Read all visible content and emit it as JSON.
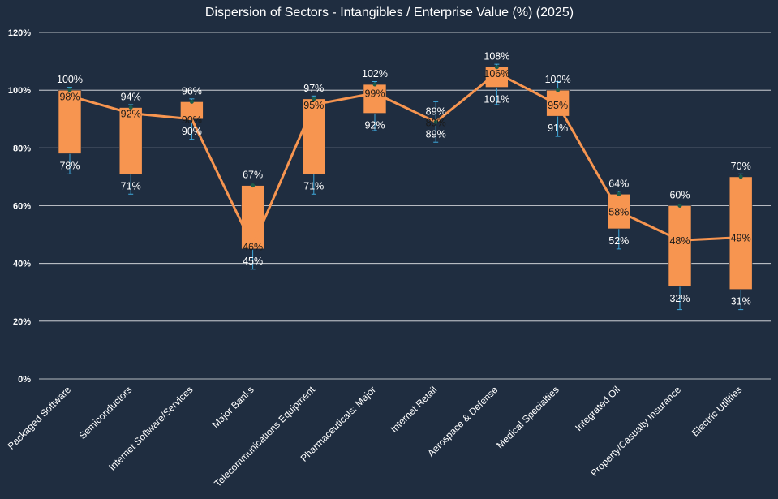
{
  "chart_data": {
    "type": "box",
    "title": "Dispersion of Sectors - Intangibles / Enterprise Value (%) (2025)",
    "xlabel": "",
    "ylabel": "",
    "ylim": [
      0,
      120
    ],
    "yticks": [
      0,
      20,
      40,
      60,
      80,
      100,
      120
    ],
    "ytick_labels": [
      "0%",
      "20%",
      "40%",
      "60%",
      "80%",
      "100%",
      "120%"
    ],
    "grid": true,
    "colors": {
      "background": "#1f2d40",
      "box_fill": "#f79550",
      "median_line": "#f79550",
      "whisker": "#3fa9dc",
      "grid": "#ffffff",
      "marker": "#1d5c4a"
    },
    "categories": [
      "Packaged Software",
      "Semiconductors",
      "Internet Software/Services",
      "Major Banks",
      "Telecommunications Equipment",
      "Pharmaceuticals: Major",
      "Internet Retail",
      "Aerospace & Defense",
      "Medical Specialties",
      "Integrated Oil",
      "Property/Casualty Insurance",
      "Electric Utilities"
    ],
    "box_top": [
      100,
      94,
      96,
      67,
      97,
      102,
      89,
      108,
      100,
      64,
      60,
      70
    ],
    "box_bottom": [
      78,
      71,
      90,
      45,
      71,
      92,
      89,
      101,
      91,
      52,
      32,
      31
    ],
    "median": [
      98,
      92,
      90,
      46,
      95,
      99,
      89,
      106,
      95,
      58,
      48,
      49
    ],
    "top_labels": [
      "100%",
      "94%",
      "96%",
      "67%",
      "97%",
      "102%",
      "89%",
      "108%",
      "100%",
      "64%",
      "60%",
      "70%"
    ],
    "bottom_labels": [
      "78%",
      "71%",
      "90%",
      "45%",
      "71%",
      "92%",
      "89%",
      "101%",
      "91%",
      "52%",
      "32%",
      "31%"
    ],
    "median_labels": [
      "98%",
      "92%",
      "90%",
      "46%",
      "95%",
      "99%",
      "89%",
      "106%",
      "95%",
      "58%",
      "48%",
      "49%"
    ],
    "whisker_high": [
      101,
      95,
      97,
      67,
      98,
      103,
      96,
      109,
      103,
      65,
      60,
      71
    ],
    "whisker_low": [
      71,
      64,
      83,
      38,
      64,
      86,
      82,
      95,
      84,
      45,
      24,
      24
    ]
  }
}
